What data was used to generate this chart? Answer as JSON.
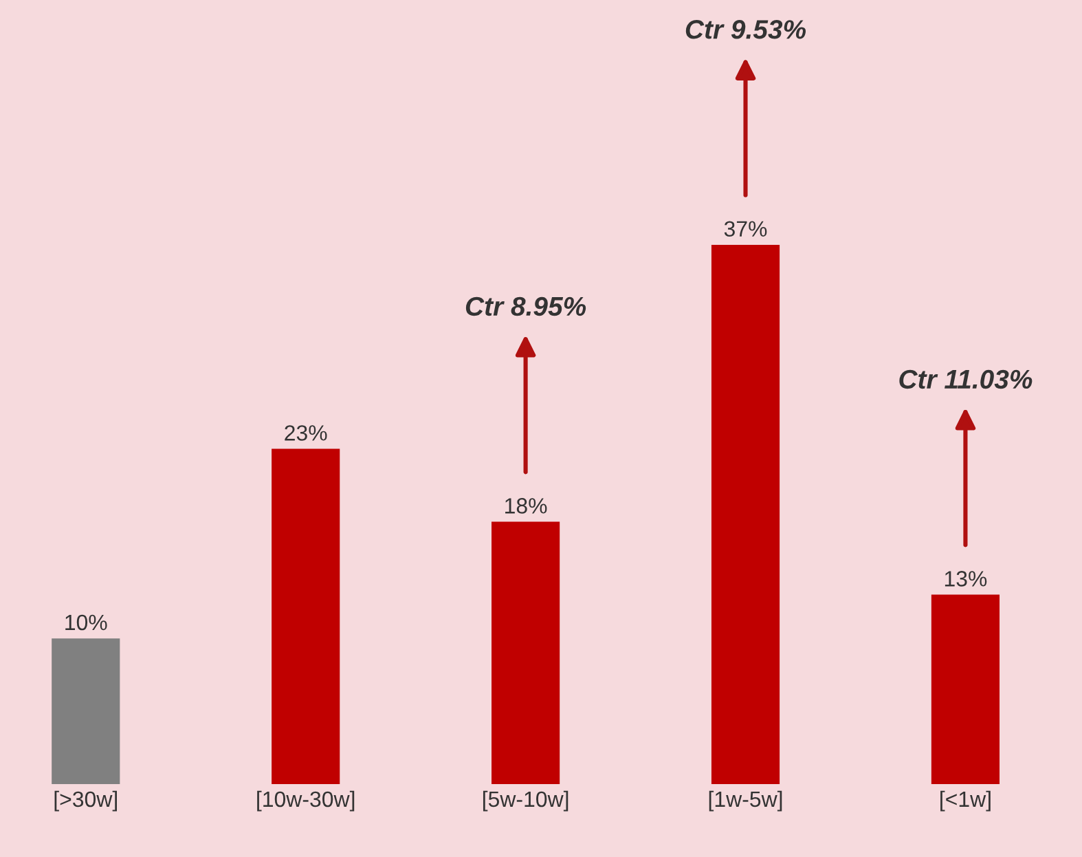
{
  "chart_data": {
    "type": "bar",
    "categories": [
      "[>30w]",
      "[10w-30w]",
      "[5w-10w]",
      "[1w-5w]",
      "[<1w]"
    ],
    "values": [
      10,
      23,
      18,
      37,
      13
    ],
    "colors": [
      "#808080",
      "#c00000",
      "#c00000",
      "#c00000",
      "#c00000"
    ],
    "value_labels": [
      "10%",
      "23%",
      "18%",
      "37%",
      "13%"
    ],
    "annotations": [
      "Ctr 8.95%",
      "Ctr 9.53%",
      "Ctr 11.03%"
    ],
    "grid": false,
    "legend": false
  }
}
